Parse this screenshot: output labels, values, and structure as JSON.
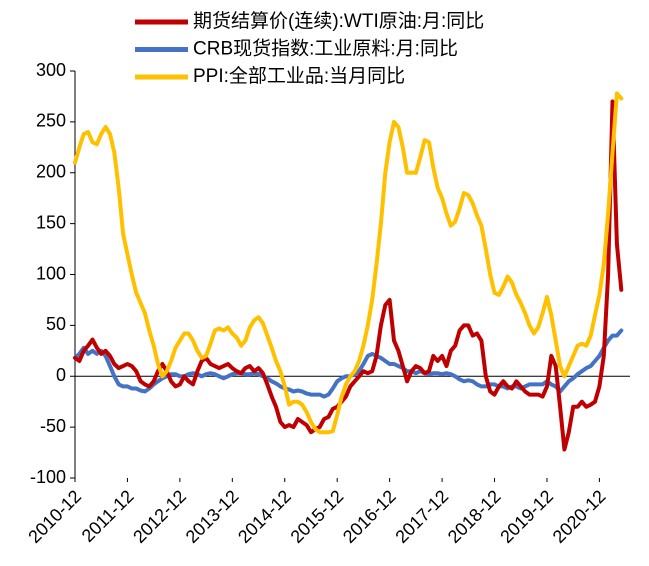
{
  "chart_data": {
    "type": "line",
    "categories": [
      "2010-12",
      null,
      null,
      null,
      null,
      null,
      null,
      null,
      null,
      null,
      null,
      null,
      "2011-12",
      null,
      null,
      null,
      null,
      null,
      null,
      null,
      null,
      null,
      null,
      null,
      "2012-12",
      null,
      null,
      null,
      null,
      null,
      null,
      null,
      null,
      null,
      null,
      null,
      "2013-12",
      null,
      null,
      null,
      null,
      null,
      null,
      null,
      null,
      null,
      null,
      null,
      "2014-12",
      null,
      null,
      null,
      null,
      null,
      null,
      null,
      null,
      null,
      null,
      null,
      "2015-12",
      null,
      null,
      null,
      null,
      null,
      null,
      null,
      null,
      null,
      null,
      null,
      "2016-12",
      null,
      null,
      null,
      null,
      null,
      null,
      null,
      null,
      null,
      null,
      null,
      "2017-12",
      null,
      null,
      null,
      null,
      null,
      null,
      null,
      null,
      null,
      null,
      null,
      "2018-12",
      null,
      null,
      null,
      null,
      null,
      null,
      null,
      null,
      null,
      null,
      null,
      "2019-12",
      null,
      null,
      null,
      null,
      null,
      null,
      null,
      null,
      null,
      null,
      null,
      "2020-12",
      null,
      null,
      null,
      null,
      null
    ],
    "series": [
      {
        "name": "期货结算价(连续):WTI原油:月:同比",
        "color": "#c00000",
        "values": [
          18,
          15,
          25,
          30,
          36,
          28,
          22,
          25,
          20,
          12,
          8,
          10,
          12,
          10,
          5,
          -5,
          -8,
          -10,
          -5,
          5,
          12,
          5,
          -5,
          -10,
          -8,
          0,
          -5,
          -8,
          5,
          15,
          18,
          12,
          10,
          8,
          10,
          12,
          8,
          5,
          3,
          8,
          10,
          5,
          8,
          3,
          -8,
          -20,
          -30,
          -45,
          -50,
          -48,
          -50,
          -42,
          -45,
          -48,
          -55,
          -52,
          -50,
          -42,
          -40,
          -32,
          -30,
          -25,
          -20,
          -10,
          -5,
          0,
          5,
          3,
          5,
          20,
          50,
          70,
          75,
          35,
          25,
          10,
          -5,
          5,
          10,
          8,
          3,
          5,
          20,
          15,
          20,
          10,
          25,
          30,
          45,
          50,
          50,
          40,
          42,
          35,
          0,
          -15,
          -18,
          -10,
          -5,
          -10,
          -12,
          -5,
          -10,
          -15,
          -18,
          -18,
          -18,
          -20,
          -10,
          20,
          10,
          -30,
          -72,
          -55,
          -30,
          -30,
          -25,
          -30,
          -28,
          -25,
          -10,
          20,
          100,
          270,
          130,
          85
        ]
      },
      {
        "name": "CRB现货指数:工业原料:月:同比",
        "color": "#4472c4",
        "values": [
          18,
          22,
          28,
          22,
          25,
          22,
          25,
          20,
          10,
          0,
          -8,
          -10,
          -10,
          -12,
          -12,
          -14,
          -15,
          -12,
          -8,
          -5,
          -2,
          0,
          2,
          2,
          0,
          0,
          2,
          3,
          2,
          0,
          2,
          3,
          2,
          0,
          -2,
          0,
          2,
          3,
          3,
          2,
          2,
          3,
          2,
          0,
          -2,
          -5,
          -7,
          -10,
          -12,
          -13,
          -15,
          -14,
          -15,
          -17,
          -18,
          -18,
          -18,
          -20,
          -18,
          -12,
          -5,
          -2,
          0,
          0,
          2,
          5,
          12,
          20,
          22,
          20,
          18,
          15,
          12,
          12,
          10,
          8,
          5,
          5,
          3,
          5,
          3,
          2,
          3,
          3,
          2,
          3,
          2,
          0,
          -3,
          -5,
          -4,
          -5,
          -8,
          -10,
          -10,
          -8,
          -8,
          -10,
          -10,
          -12,
          -10,
          -10,
          -12,
          -10,
          -8,
          -8,
          -8,
          -8,
          -5,
          -8,
          -10,
          -15,
          -10,
          -5,
          -2,
          2,
          5,
          8,
          10,
          15,
          20,
          28,
          35,
          40,
          40,
          45
        ]
      },
      {
        "name": "PPI:全部工业品:当月同比",
        "color": "#ffc000",
        "values": [
          210,
          225,
          238,
          240,
          230,
          228,
          238,
          245,
          238,
          220,
          185,
          140,
          120,
          100,
          82,
          72,
          62,
          45,
          30,
          12,
          0,
          5,
          15,
          28,
          35,
          42,
          42,
          35,
          25,
          18,
          20,
          32,
          45,
          47,
          45,
          48,
          42,
          38,
          30,
          35,
          48,
          55,
          58,
          52,
          40,
          28,
          15,
          5,
          -10,
          -28,
          -25,
          -25,
          -28,
          -35,
          -45,
          -52,
          -55,
          -55,
          -55,
          -54,
          -38,
          -20,
          -8,
          0,
          5,
          15,
          30,
          50,
          75,
          110,
          150,
          200,
          230,
          250,
          245,
          225,
          200,
          200,
          200,
          215,
          232,
          230,
          205,
          185,
          175,
          160,
          148,
          152,
          165,
          180,
          178,
          170,
          158,
          148,
          125,
          100,
          82,
          80,
          88,
          98,
          92,
          80,
          72,
          62,
          50,
          42,
          48,
          62,
          78,
          60,
          35,
          10,
          0,
          10,
          20,
          30,
          32,
          30,
          40,
          60,
          80,
          110,
          160,
          220,
          278,
          273
        ]
      }
    ],
    "ylim": [
      -100,
      300
    ],
    "yticks": [
      -100,
      -50,
      0,
      50,
      100,
      150,
      200,
      250,
      300
    ]
  }
}
